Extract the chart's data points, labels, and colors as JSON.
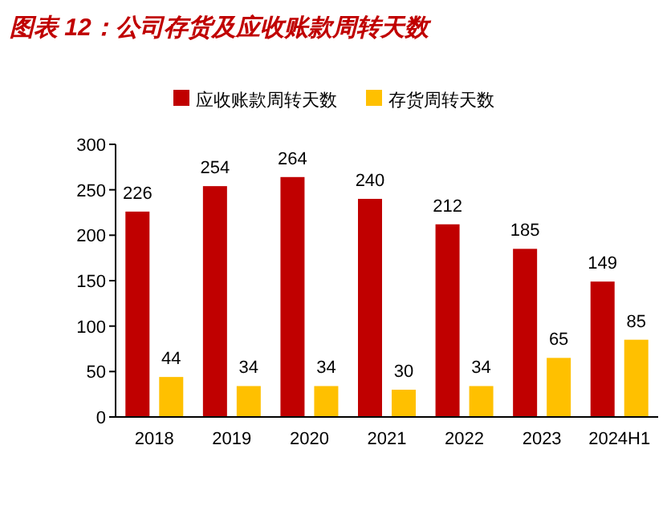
{
  "chart_data": {
    "type": "bar",
    "title": "图表 12：公司存货及应收账款周转天数",
    "categories": [
      "2018",
      "2019",
      "2020",
      "2021",
      "2022",
      "2023",
      "2024H1"
    ],
    "series": [
      {
        "name": "应收账款周转天数",
        "color": "#c00000",
        "values": [
          226,
          254,
          264,
          240,
          212,
          185,
          149
        ]
      },
      {
        "name": "存货周转天数",
        "color": "#ffc000",
        "values": [
          44,
          34,
          34,
          30,
          34,
          65,
          85
        ]
      }
    ],
    "ylim": [
      0,
      300
    ],
    "yticks": [
      0,
      50,
      100,
      150,
      200,
      250,
      300
    ],
    "data_labels": true,
    "legend": "top",
    "grid": false
  }
}
